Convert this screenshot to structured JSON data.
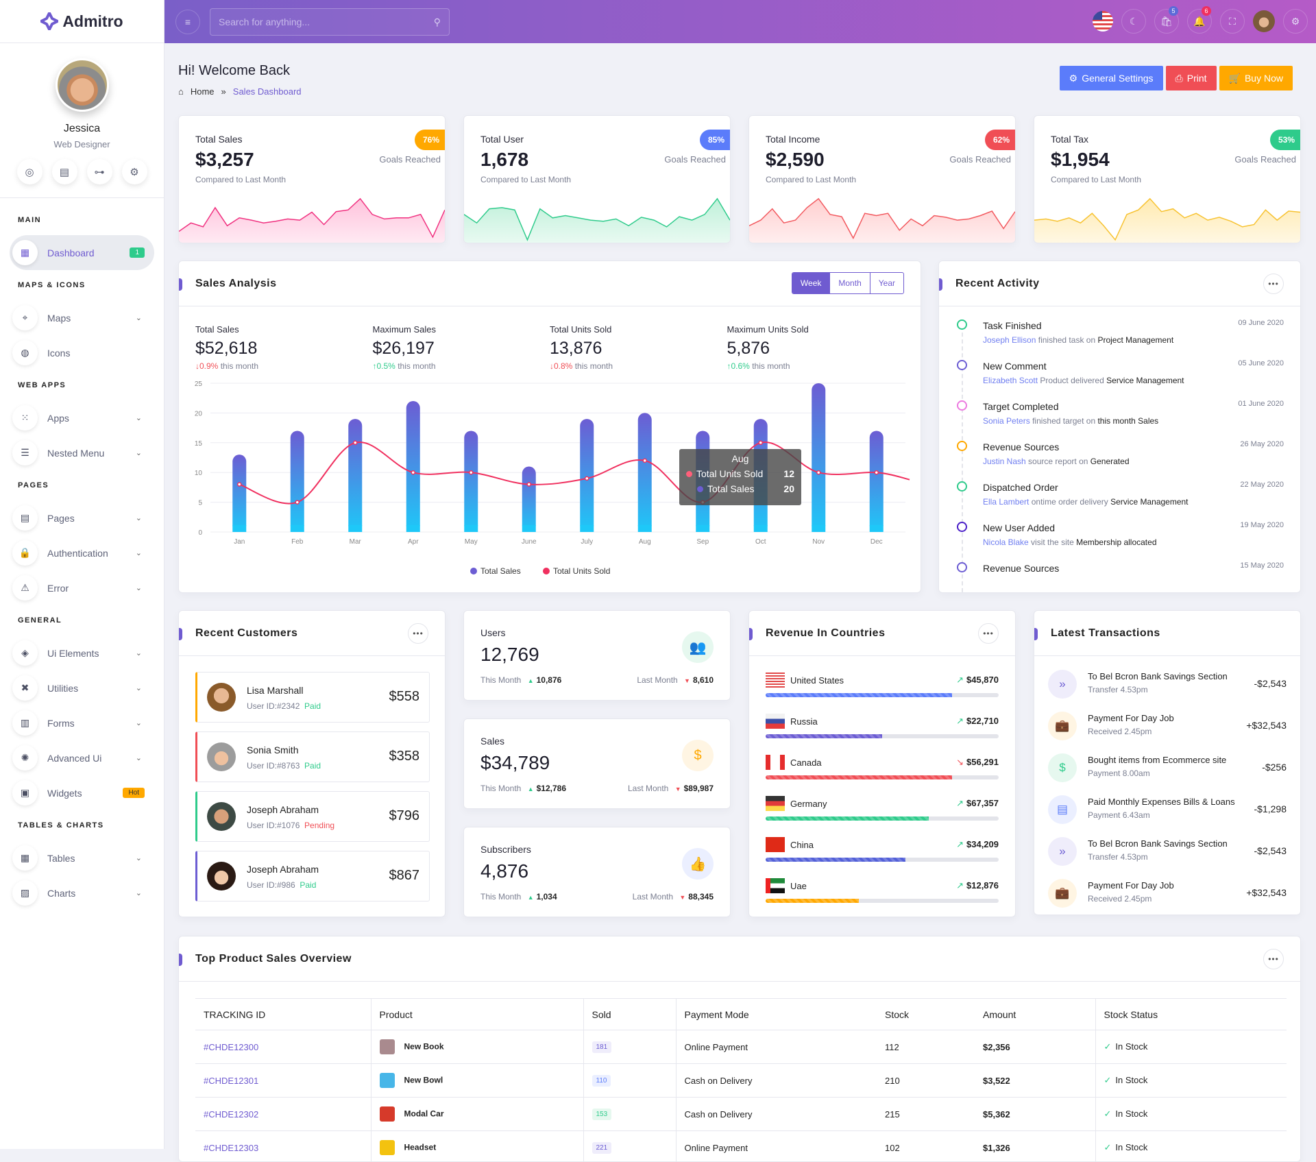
{
  "brand": {
    "name": "Admitro"
  },
  "profile": {
    "name": "Jessica",
    "role": "Web Designer"
  },
  "sidebar": {
    "sections": [
      {
        "heading": "MAIN",
        "items": [
          {
            "label": "Dashboard",
            "icon": "dashboard-icon",
            "badge": "1",
            "badge_color": "#2ecb8b",
            "active": true
          }
        ]
      },
      {
        "heading": "MAPS & ICONS",
        "items": [
          {
            "label": "Maps",
            "icon": "map-pin-icon",
            "chevron": true
          },
          {
            "label": "Icons",
            "icon": "palette-icon"
          }
        ]
      },
      {
        "heading": "WEB APPS",
        "items": [
          {
            "label": "Apps",
            "icon": "grid-icon",
            "chevron": true
          },
          {
            "label": "Nested Menu",
            "icon": "server-icon",
            "chevron": true
          }
        ]
      },
      {
        "heading": "PAGES",
        "items": [
          {
            "label": "Pages",
            "icon": "pages-icon",
            "chevron": true
          },
          {
            "label": "Authentication",
            "icon": "lock-icon",
            "chevron": true
          },
          {
            "label": "Error",
            "icon": "warning-icon",
            "chevron": true
          }
        ]
      },
      {
        "heading": "GENERAL",
        "items": [
          {
            "label": "Ui Elements",
            "icon": "layers-icon",
            "chevron": true
          },
          {
            "label": "Utilities",
            "icon": "tools-icon",
            "chevron": true
          },
          {
            "label": "Forms",
            "icon": "form-icon",
            "chevron": true
          },
          {
            "label": "Advanced Ui",
            "icon": "aperture-icon",
            "chevron": true
          },
          {
            "label": "Widgets",
            "icon": "widgets-icon",
            "badge": "Hot",
            "badge_color": "#ffa800"
          }
        ]
      },
      {
        "heading": "TABLES & CHARTS",
        "items": [
          {
            "label": "Tables",
            "icon": "table-icon",
            "chevron": true
          },
          {
            "label": "Charts",
            "icon": "bar-chart-icon",
            "chevron": true
          }
        ]
      }
    ]
  },
  "topbar": {
    "search_placeholder": "Search for anything...",
    "cart_count": "5",
    "notif_count": "6"
  },
  "header": {
    "title": "Hi! Welcome Back",
    "breadcrumb_home": "Home",
    "breadcrumb_sep": "»",
    "breadcrumb_current": "Sales Dashboard",
    "btn_settings": "General Settings",
    "btn_print": "Print",
    "btn_buy": "Buy Now"
  },
  "stats": [
    {
      "label": "Total Sales",
      "value": "$3,257",
      "compare": "Compared to Last Month",
      "badge": "76%",
      "goal": "Goals Reached",
      "color": "#ffa800",
      "line": "#f0307f",
      "fill": "#ffc2dc",
      "spark": [
        20,
        35,
        28,
        62,
        30,
        44,
        40,
        35,
        38,
        42,
        40,
        54,
        32,
        55,
        58,
        78,
        50,
        42,
        44,
        44,
        50,
        10,
        58
      ]
    },
    {
      "label": "Total User",
      "value": "1,678",
      "compare": "Compared to Last Month",
      "badge": "85%",
      "goal": "Goals Reached",
      "color": "#5b7cfa",
      "line": "#2ecb8b",
      "fill": "#bff0d9",
      "spark": [
        50,
        35,
        60,
        62,
        58,
        5,
        60,
        44,
        48,
        44,
        40,
        38,
        42,
        30,
        45,
        40,
        28,
        46,
        40,
        50,
        78,
        40
      ]
    },
    {
      "label": "Total Income",
      "value": "$2,590",
      "compare": "Compared to Last Month",
      "badge": "62%",
      "goal": "Goals Reached",
      "color": "#f04e55",
      "line": "#f2595f",
      "fill": "#ffcfd0",
      "spark": [
        30,
        40,
        60,
        35,
        40,
        62,
        78,
        50,
        46,
        8,
        52,
        48,
        52,
        22,
        42,
        30,
        48,
        45,
        40,
        42,
        48,
        56,
        25,
        55
      ]
    },
    {
      "label": "Total Tax",
      "value": "$1,954",
      "compare": "Compared to Last Month",
      "badge": "53%",
      "goal": "Goals Reached",
      "color": "#2ecb8b",
      "line": "#f7c230",
      "fill": "#ffeab0",
      "spark": [
        40,
        42,
        38,
        44,
        35,
        52,
        30,
        5,
        50,
        58,
        78,
        55,
        60,
        44,
        52,
        40,
        45,
        38,
        28,
        32,
        58,
        40,
        56,
        54
      ]
    }
  ],
  "sales_analysis": {
    "title": "Sales Analysis",
    "tabs": [
      "Week",
      "Month",
      "Year"
    ],
    "active_tab": "Week",
    "kpis": [
      {
        "label": "Total Sales",
        "value": "$52,618",
        "change": "0.9%",
        "dir": "down",
        "suffix": "this month"
      },
      {
        "label": "Maximum Sales",
        "value": "$26,197",
        "change": "0.5%",
        "dir": "up",
        "suffix": "this month"
      },
      {
        "label": "Total Units Sold",
        "value": "13,876",
        "change": "0.8%",
        "dir": "down",
        "suffix": "this month"
      },
      {
        "label": "Maximum Units Sold",
        "value": "5,876",
        "change": "0.6%",
        "dir": "up",
        "suffix": "this month"
      }
    ]
  },
  "chart_data": {
    "type": "bar",
    "title": "Sales Analysis",
    "categories": [
      "Jan",
      "Feb",
      "Mar",
      "Apr",
      "May",
      "June",
      "July",
      "Aug",
      "Sep",
      "Oct",
      "Nov",
      "Dec"
    ],
    "series": [
      {
        "name": "Total Sales",
        "type": "bar",
        "color": "#6c5dd3",
        "values": [
          13,
          17,
          19,
          22,
          17,
          11,
          19,
          20,
          17,
          19,
          25,
          17
        ]
      },
      {
        "name": "Total Units Sold",
        "type": "line",
        "color": "#f0305f",
        "values": [
          8,
          5,
          15,
          10,
          10,
          8,
          9,
          12,
          5,
          15,
          10,
          10
        ]
      }
    ],
    "ylim": [
      0,
      25
    ],
    "yticks": [
      0,
      5,
      10,
      15,
      20,
      25
    ],
    "grid": true,
    "legend": "bottom",
    "tooltip": {
      "category": "Aug",
      "rows": [
        {
          "name": "Total Units Sold",
          "value": "12",
          "color": "#ff5f7a"
        },
        {
          "name": "Total Sales",
          "value": "20",
          "color": "#6c5dd3"
        }
      ]
    }
  },
  "activity": {
    "title": "Recent Activity",
    "items": [
      {
        "title": "Task Finished",
        "name": "Joseph Ellison",
        "text": "finished task on",
        "target": "Project Management",
        "date": "09 June 2020",
        "color": "#2ecb8b"
      },
      {
        "title": "New Comment",
        "name": "Elizabeth Scott",
        "text": "Product delivered",
        "target": "Service Management",
        "date": "05 June 2020",
        "color": "#6c5dd3"
      },
      {
        "title": "Target Completed",
        "name": "Sonia Peters",
        "text": "finished target on",
        "target": "this month Sales",
        "date": "01 June 2020",
        "color": "#ec7ae0"
      },
      {
        "title": "Revenue Sources",
        "name": "Justin Nash",
        "text": "source report on",
        "target": "Generated",
        "date": "26 May 2020",
        "color": "#ffa800"
      },
      {
        "title": "Dispatched Order",
        "name": "Ella Lambert",
        "text": "ontime order delivery",
        "target": "Service Management",
        "date": "22 May 2020",
        "color": "#2ecb8b"
      },
      {
        "title": "New User Added",
        "name": "Nicola Blake",
        "text": "visit the site",
        "target": "Membership allocated",
        "date": "19 May 2020",
        "color": "#4a1fc8"
      },
      {
        "title": "Revenue Sources",
        "name": "",
        "text": "",
        "target": "",
        "date": "15 May 2020",
        "color": "#6c5dd3"
      }
    ]
  },
  "customers": {
    "title": "Recent Customers",
    "items": [
      {
        "name": "Lisa Marshall",
        "id": "User ID:#2342",
        "status": "Paid",
        "status_color": "#2ecb8b",
        "amount": "$558",
        "color": "#ffa800"
      },
      {
        "name": "Sonia Smith",
        "id": "User ID:#8763",
        "status": "Paid",
        "status_color": "#2ecb8b",
        "amount": "$358",
        "color": "#f04e55"
      },
      {
        "name": "Joseph Abraham",
        "id": "User ID:#1076",
        "status": "Pending",
        "status_color": "#f04e55",
        "amount": "$796",
        "color": "#2ecb8b"
      },
      {
        "name": "Joseph Abraham",
        "id": "User ID:#986",
        "status": "Paid",
        "status_color": "#2ecb8b",
        "amount": "$867",
        "color": "#6c5dd3"
      }
    ]
  },
  "minis": [
    {
      "label": "Users",
      "value": "12,769",
      "this_label": "This Month",
      "this_val": "10,876",
      "last_label": "Last Month",
      "last_val": "8,610",
      "icon": "users-icon",
      "color": "#2ecb8b",
      "bg": "#e6f8ef"
    },
    {
      "label": "Sales",
      "value": "$34,789",
      "this_label": "This Month",
      "this_val": "$12,786",
      "last_label": "Last Month",
      "last_val": "$89,987",
      "icon": "dollar-hand-icon",
      "color": "#ffa800",
      "bg": "#fff5e3"
    },
    {
      "label": "Subscribers",
      "value": "4,876",
      "this_label": "This Month",
      "this_val": "1,034",
      "last_label": "Last Month",
      "last_val": "88,345",
      "icon": "thumbs-up-icon",
      "color": "#5b7cfa",
      "bg": "#ebefff"
    }
  ],
  "countries": {
    "title": "Revenue In Countries",
    "items": [
      {
        "name": "United States",
        "amount": "$45,870",
        "trend": "up",
        "progress": 80,
        "color": "#5b7cfa"
      },
      {
        "name": "Russia",
        "amount": "$22,710",
        "trend": "up",
        "progress": 50,
        "color": "#6c5dd3"
      },
      {
        "name": "Canada",
        "amount": "$56,291",
        "trend": "down",
        "progress": 80,
        "color": "#f04e55"
      },
      {
        "name": "Germany",
        "amount": "$67,357",
        "trend": "up",
        "progress": 70,
        "color": "#2ecb8b"
      },
      {
        "name": "China",
        "amount": "$34,209",
        "trend": "up",
        "progress": 60,
        "color": "#5360d8"
      },
      {
        "name": "Uae",
        "amount": "$12,876",
        "trend": "up",
        "progress": 40,
        "color": "#ffa800"
      }
    ]
  },
  "transactions": {
    "title": "Latest Transactions",
    "items": [
      {
        "title": "To Bel Bcron Bank Savings Section",
        "sub": "Transfer 4.53pm",
        "amount": "-$2,543",
        "icon": "chevrons-right-icon",
        "color": "#6c5dd3",
        "bg": "#efedfb"
      },
      {
        "title": "Payment For  Day Job",
        "sub": "Received 2.45pm",
        "amount": "+$32,543",
        "icon": "briefcase-icon",
        "color": "#ffa800",
        "bg": "#fff5e3"
      },
      {
        "title": "Bought items from Ecommerce site",
        "sub": "Payment 8.00am",
        "amount": "-$256",
        "icon": "dollar-icon",
        "color": "#2ecb8b",
        "bg": "#e6f8ef"
      },
      {
        "title": "Paid Monthly Expenses Bills & Loans",
        "sub": "Payment 6.43am",
        "amount": "-$1,298",
        "icon": "document-icon",
        "color": "#5b7cfa",
        "bg": "#ebefff"
      },
      {
        "title": "To Bel Bcron Bank Savings Section",
        "sub": "Transfer 4.53pm",
        "amount": "-$2,543",
        "icon": "chevrons-right-icon",
        "color": "#6c5dd3",
        "bg": "#efedfb"
      },
      {
        "title": "Payment For  Day Job",
        "sub": "Received 2.45pm",
        "amount": "+$32,543",
        "icon": "briefcase-icon",
        "color": "#ffa800",
        "bg": "#fff5e3"
      }
    ]
  },
  "products": {
    "title": "Top Product Sales Overview",
    "columns": [
      "TRACKING ID",
      "Product",
      "Sold",
      "Payment Mode",
      "Stock",
      "Amount",
      "Stock Status"
    ],
    "rows": [
      {
        "id": "#CHDE12300",
        "product": "New Book",
        "sold": "181",
        "sold_color": "#6c5dd3",
        "sold_bg": "#efedfb",
        "mode": "Online Payment",
        "stock": "112",
        "amount": "$2,356",
        "status": "In Stock",
        "img": "#a98a8e"
      },
      {
        "id": "#CHDE12301",
        "product": "New Bowl",
        "sold": "110",
        "sold_color": "#5b7cfa",
        "sold_bg": "#ebefff",
        "mode": "Cash on Delivery",
        "stock": "210",
        "amount": "$3,522",
        "status": "In Stock",
        "img": "#47b6e8"
      },
      {
        "id": "#CHDE12302",
        "product": "Modal Car",
        "sold": "153",
        "sold_color": "#2ecb8b",
        "sold_bg": "#e6f8ef",
        "mode": "Cash on Delivery",
        "stock": "215",
        "amount": "$5,362",
        "status": "In Stock",
        "img": "#d63a2a"
      },
      {
        "id": "#CHDE12303",
        "product": "Headset",
        "sold": "221",
        "sold_color": "#6c5dd3",
        "sold_bg": "#efedfb",
        "mode": "Online Payment",
        "stock": "102",
        "amount": "$1,326",
        "status": "In Stock",
        "img": "#f3c20f"
      }
    ]
  }
}
